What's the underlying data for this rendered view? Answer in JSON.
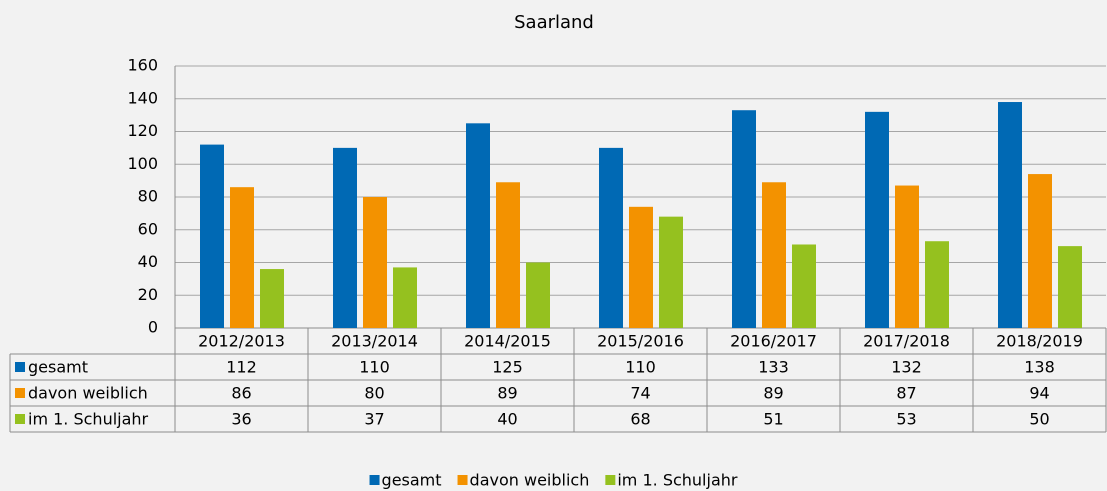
{
  "chart_data": {
    "type": "bar",
    "title": "Saarland",
    "categories": [
      "2012/2013",
      "2013/2014",
      "2014/2015",
      "2015/2016",
      "2016/2017",
      "2017/2018",
      "2018/2019"
    ],
    "series": [
      {
        "name": "gesamt",
        "color": "#0069b4",
        "values": [
          112,
          110,
          125,
          110,
          133,
          132,
          138
        ]
      },
      {
        "name": "davon weiblich",
        "color": "#f39200",
        "values": [
          86,
          80,
          89,
          74,
          89,
          87,
          94
        ]
      },
      {
        "name": "im 1. Schuljahr",
        "color": "#95c11f",
        "values": [
          36,
          37,
          40,
          68,
          51,
          53,
          50
        ]
      }
    ],
    "ylim": [
      0,
      160
    ],
    "yticks": [
      0,
      20,
      40,
      60,
      80,
      100,
      120,
      140,
      160
    ],
    "grid": true,
    "legend": "bottom"
  }
}
